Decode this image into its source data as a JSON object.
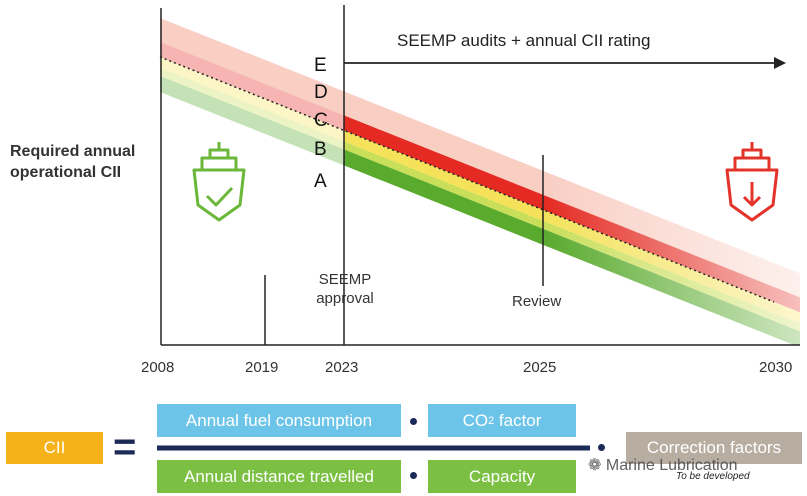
{
  "axis": {
    "ylabel_line1": "Required annual",
    "ylabel_line2": "operational CII",
    "years": [
      "2008",
      "2019",
      "2023",
      "2025",
      "2030"
    ]
  },
  "grades": [
    "E",
    "D",
    "C",
    "B",
    "A"
  ],
  "annotations": {
    "top_arrow": "SEEMP audits + annual CII rating",
    "seemp_line1": "SEEMP",
    "seemp_line2": "approval",
    "review": "Review"
  },
  "icons": {
    "left": "ship-check-icon",
    "right": "ship-down-icon"
  },
  "colors": {
    "grade_A": "#5aaa2e",
    "grade_B": "#c9df5a",
    "grade_C": "#f5e25a",
    "grade_D": "#e42a22",
    "grade_E": "#f4a592",
    "formula_navy": "#1b2a57",
    "box_blue": "#6cc4e8",
    "box_green": "#7bc043",
    "box_orange": "#f6b21a",
    "box_grey": "#b7aea1"
  },
  "formula": {
    "cii": "CII",
    "equals": "=",
    "fuel": "Annual fuel consumption",
    "co2_main": "CO",
    "co2_sub": "2",
    "co2_rest": " factor",
    "distance": "Annual distance travelled",
    "capacity": "Capacity",
    "correction": "Correction factors",
    "to_be_developed": "To be developed"
  },
  "watermark": "Marine Lubrication"
}
